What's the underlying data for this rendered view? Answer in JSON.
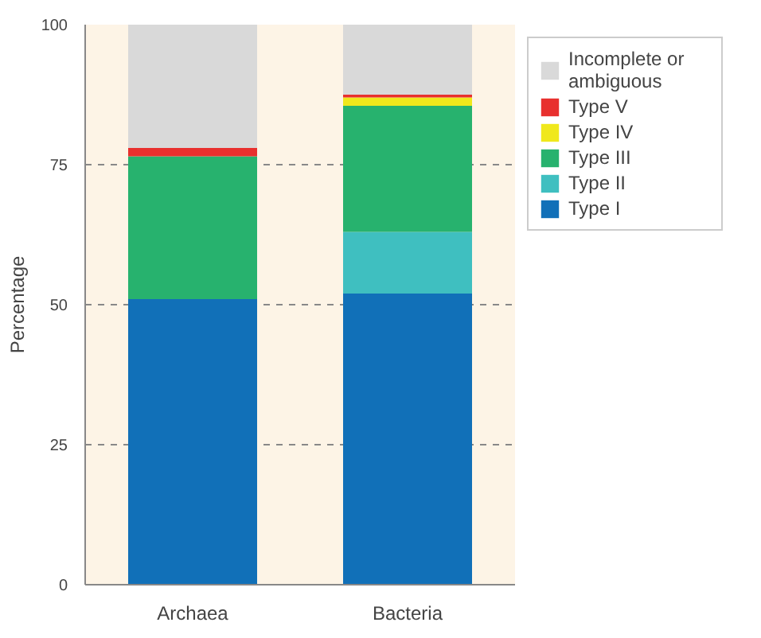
{
  "chart_data": {
    "type": "bar",
    "stacked": true,
    "ylabel": "Percentage",
    "categories": [
      "Archaea",
      "Bacteria"
    ],
    "series": [
      {
        "name": "Type I",
        "color": "#1170b8",
        "values": [
          51,
          52
        ]
      },
      {
        "name": "Type II",
        "color": "#3fbfc0",
        "values": [
          0,
          11
        ]
      },
      {
        "name": "Type III",
        "color": "#27b26e",
        "values": [
          25.5,
          22.5
        ]
      },
      {
        "name": "Type IV",
        "color": "#f0e81c",
        "values": [
          0,
          1.5
        ]
      },
      {
        "name": "Type V",
        "color": "#e8302e",
        "values": [
          1.5,
          0.5
        ]
      },
      {
        "name": "Incomplete or ambiguous",
        "color": "#d9d9d9",
        "values": [
          22,
          12.5
        ]
      }
    ],
    "ylim": [
      0,
      100
    ],
    "yticks": [
      0,
      25,
      50,
      75,
      100
    ],
    "grid": "y",
    "legend": "top right"
  }
}
